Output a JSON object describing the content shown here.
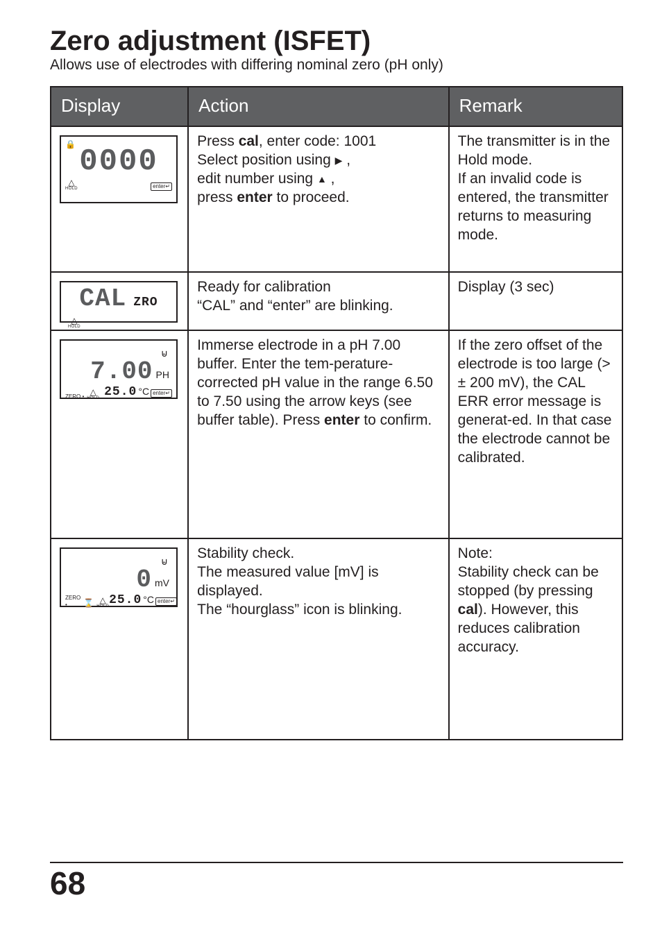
{
  "title": "Zero adjustment (ISFET)",
  "subtitle": "Allows use of electrodes with differing nominal zero (pH only)",
  "columns": {
    "display": "Display",
    "action": "Action",
    "remark": "Remark"
  },
  "rows": [
    {
      "lcd": {
        "type": "code",
        "main": "0000",
        "icons": {
          "lock": "🔒",
          "hold": "△",
          "hold_label": "HOLD",
          "enter_key": "enter↵"
        },
        "height": "tall"
      },
      "action_html": "Press <b>cal</b>, enter code: 1001<br>Select position using  <span class='arrow-right'></span> ,<br>edit number using  <span class='arrow-up'></span> ,<br>press <b>enter</b> to proceed.",
      "remark": "The transmitter is in the Hold mode.\nIf an invalid code is entered, the transmitter returns to measuring mode."
    },
    {
      "lcd": {
        "type": "cal",
        "main": "CAL",
        "sub_right": "ZRO",
        "icons": {
          "hold": "△",
          "hold_label": "HOLD"
        },
        "height": "short"
      },
      "action_html": "Ready for calibration<br>“CAL” and “enter” are blinking.",
      "remark": "Display (3 sec)"
    },
    {
      "lcd": {
        "type": "ph",
        "main": "7.00",
        "main_unit": "PH",
        "sub": "25.0",
        "sub_unit": "°C",
        "icons": {
          "sensor": "⊌",
          "zero": "ZERO •",
          "hold": "△",
          "hold_label": "HOLD",
          "enter_key": "enter↵"
        },
        "height": "mid"
      },
      "action_html": "Immerse electrode in a pH 7.00 buffer. Enter the tem-perature-corrected pH value in the range 6.50 to 7.50 using the arrow keys (see buffer table). Press <b>enter</b> to confirm.",
      "remark": "If the zero offset of the electrode is too large (> ± 200 mV), the CAL ERR error message is generat-ed. In that case the electrode cannot be calibrated."
    },
    {
      "lcd": {
        "type": "mv",
        "main": "0",
        "main_unit": "mV",
        "sub": "25.0",
        "sub_unit": "°C",
        "icons": {
          "sensor": "⊌",
          "zero": "ZERO •",
          "hourglass": "⌛",
          "hold": "△",
          "hold_label": "HOLD",
          "enter_key": "enter↵"
        },
        "height": "mid"
      },
      "action_html": "Stability check.<br>The measured value [mV] is displayed.<br>The “hourglass” icon is blinking.",
      "remark_html": "Note:<br>Stability check can be stopped (by pressing <b>cal</b>). However, this reduces calibration accuracy."
    }
  ],
  "page_number": "68",
  "colors": {
    "header_bg": "#5f6062",
    "text": "#231f20",
    "seg_gray": "#5b5c5e"
  }
}
